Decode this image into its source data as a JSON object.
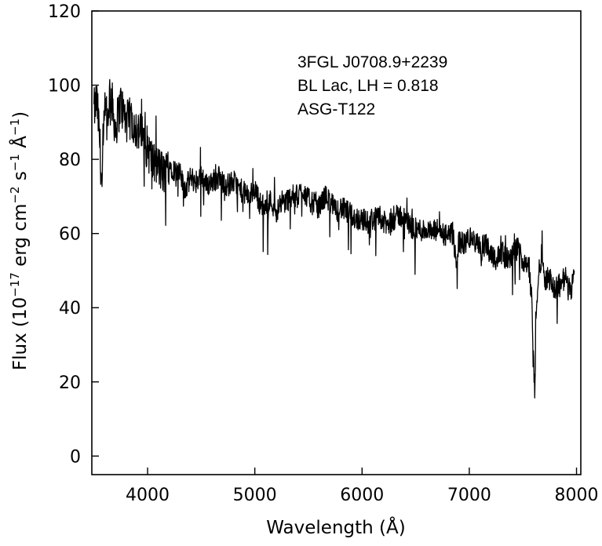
{
  "chart_data": {
    "type": "line",
    "xlabel": "Wavelength (Å)",
    "ylabel_parts": [
      "Flux (10",
      "−17",
      " erg cm",
      "−2",
      " s",
      "−1",
      " Å",
      "−1",
      ")"
    ],
    "xlim": [
      3480,
      8040
    ],
    "ylim": [
      -5,
      120
    ],
    "x_ticks": [
      4000,
      5000,
      6000,
      7000,
      8000
    ],
    "y_ticks": [
      0,
      20,
      40,
      60,
      80,
      100,
      120
    ],
    "grid": false,
    "annotations": [
      "3FGL J0708.9+2239",
      "BL Lac, LH = 0.818",
      "ASG-T122"
    ],
    "series": [
      {
        "color": "#000000",
        "x": [
          3500,
          3525,
          3550,
          3575,
          3600,
          3625,
          3650,
          3675,
          3700,
          3725,
          3750,
          3800,
          3850,
          3900,
          3950,
          4000,
          4050,
          4100,
          4150,
          4200,
          4250,
          4300,
          4350,
          4400,
          4450,
          4500,
          4550,
          4600,
          4650,
          4700,
          4750,
          4800,
          4850,
          4900,
          4950,
          5000,
          5050,
          5100,
          5150,
          5200,
          5250,
          5300,
          5350,
          5400,
          5450,
          5500,
          5550,
          5600,
          5650,
          5700,
          5750,
          5800,
          5850,
          5900,
          5950,
          6000,
          6050,
          6100,
          6150,
          6200,
          6250,
          6300,
          6350,
          6400,
          6450,
          6500,
          6550,
          6600,
          6650,
          6700,
          6750,
          6800,
          6850,
          6880,
          6900,
          6950,
          7000,
          7050,
          7100,
          7150,
          7200,
          7250,
          7300,
          7350,
          7400,
          7450,
          7500,
          7550,
          7580,
          7600,
          7610,
          7620,
          7630,
          7650,
          7680,
          7700,
          7750,
          7800,
          7850,
          7900,
          7950,
          7980
        ],
        "y": [
          93,
          96,
          87,
          72,
          93,
          90,
          99,
          94,
          88,
          92,
          95,
          90,
          91,
          88,
          86,
          83,
          79,
          78,
          76,
          79,
          77,
          76,
          72,
          75,
          74,
          76,
          73,
          74,
          75,
          74,
          73,
          74,
          72,
          71,
          70,
          72,
          68,
          67,
          69,
          66,
          68,
          69,
          70,
          70,
          72,
          69,
          68,
          67,
          70,
          69,
          66,
          67,
          66,
          65,
          64,
          64,
          63,
          64,
          64,
          63,
          62,
          64,
          65,
          64,
          62,
          61,
          61,
          61,
          60,
          61,
          60,
          59,
          60,
          50,
          58,
          57,
          59,
          58,
          56,
          57,
          55,
          53,
          55,
          53,
          54,
          56,
          53,
          52,
          43,
          25,
          18,
          32,
          42,
          50,
          55,
          48,
          48,
          45,
          47,
          48,
          45,
          50
        ]
      }
    ]
  }
}
